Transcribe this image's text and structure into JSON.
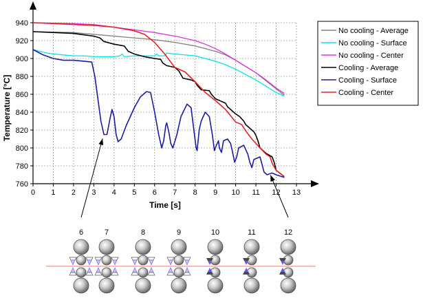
{
  "chart_data": {
    "type": "line",
    "title": "",
    "xlabel": "Time [s]",
    "ylabel": "Temperature [°C]",
    "xlim": [
      0,
      13
    ],
    "ylim": [
      760,
      940
    ],
    "xticks": [
      0,
      1,
      2,
      3,
      4,
      5,
      6,
      7,
      8,
      9,
      10,
      11,
      12,
      13
    ],
    "yticks": [
      760,
      780,
      800,
      820,
      840,
      860,
      880,
      900,
      920,
      940
    ],
    "grid": true,
    "legend_position": "top-right",
    "series": [
      {
        "name": "No cooling - Average",
        "color": "#808080",
        "points": [
          [
            0,
            930
          ],
          [
            2,
            929
          ],
          [
            3.5,
            926
          ],
          [
            5,
            923
          ],
          [
            6,
            921
          ],
          [
            7,
            918
          ],
          [
            8,
            914
          ],
          [
            9,
            908
          ],
          [
            9.5,
            904
          ],
          [
            10,
            898
          ],
          [
            10.5,
            891
          ],
          [
            11,
            884
          ],
          [
            11.5,
            875
          ],
          [
            12,
            866
          ],
          [
            12.4,
            859
          ]
        ]
      },
      {
        "name": "No cooling - Surface",
        "color": "#00e5e5",
        "points": [
          [
            0,
            910
          ],
          [
            0.5,
            907
          ],
          [
            1,
            905
          ],
          [
            1.5,
            904
          ],
          [
            2,
            903
          ],
          [
            2.5,
            903
          ],
          [
            3,
            902
          ],
          [
            3.5,
            902
          ],
          [
            4,
            902
          ],
          [
            4.3,
            903
          ],
          [
            4.4,
            905
          ],
          [
            4.5,
            902
          ],
          [
            5,
            903
          ],
          [
            5.5,
            903
          ],
          [
            6,
            903
          ],
          [
            6.1,
            905
          ],
          [
            6.2,
            903
          ],
          [
            6.5,
            903
          ],
          [
            6.6,
            906
          ],
          [
            7,
            905
          ],
          [
            8,
            903
          ],
          [
            8.5,
            900
          ],
          [
            9,
            897
          ],
          [
            9.5,
            893
          ],
          [
            10,
            888
          ],
          [
            10.5,
            882
          ],
          [
            11,
            876
          ],
          [
            11.5,
            869
          ],
          [
            12,
            862
          ],
          [
            12.4,
            858
          ]
        ]
      },
      {
        "name": "No cooling - Center",
        "color": "#e030e0",
        "points": [
          [
            0,
            940
          ],
          [
            2,
            939
          ],
          [
            3,
            938
          ],
          [
            4,
            935
          ],
          [
            5,
            932
          ],
          [
            6,
            929
          ],
          [
            7,
            925
          ],
          [
            8,
            920
          ],
          [
            8.5,
            916
          ],
          [
            9,
            911
          ],
          [
            9.5,
            905
          ],
          [
            10,
            898
          ],
          [
            10.5,
            891
          ],
          [
            11,
            884
          ],
          [
            11.5,
            876
          ],
          [
            12,
            867
          ],
          [
            12.4,
            861
          ]
        ]
      },
      {
        "name": "Cooling - Average",
        "color": "#000000",
        "points": [
          [
            0,
            930
          ],
          [
            2,
            928
          ],
          [
            3,
            925
          ],
          [
            3.3,
            923
          ],
          [
            3.5,
            919
          ],
          [
            4,
            916
          ],
          [
            4.5,
            914
          ],
          [
            4.7,
            908
          ],
          [
            5,
            905
          ],
          [
            5.5,
            902
          ],
          [
            6,
            900
          ],
          [
            6.3,
            899
          ],
          [
            6.4,
            895
          ],
          [
            6.6,
            892
          ],
          [
            7,
            890
          ],
          [
            7.2,
            886
          ],
          [
            7.4,
            878
          ],
          [
            7.8,
            876
          ],
          [
            8,
            874
          ],
          [
            8.1,
            870
          ],
          [
            8.3,
            865
          ],
          [
            8.7,
            864
          ],
          [
            8.8,
            860
          ],
          [
            9,
            855
          ],
          [
            9.3,
            852
          ],
          [
            9.5,
            850
          ],
          [
            9.6,
            846
          ],
          [
            9.8,
            842
          ],
          [
            10,
            838
          ],
          [
            10.2,
            835
          ],
          [
            10.4,
            830
          ],
          [
            10.5,
            826
          ],
          [
            10.7,
            822
          ],
          [
            10.9,
            818
          ],
          [
            11,
            814
          ],
          [
            11.1,
            808
          ],
          [
            11.2,
            800
          ],
          [
            11.5,
            794
          ],
          [
            11.8,
            790
          ],
          [
            11.9,
            784
          ],
          [
            12,
            775
          ],
          [
            12.4,
            768
          ]
        ]
      },
      {
        "name": "Cooling - Surface",
        "color": "#1a1aa8",
        "points": [
          [
            0,
            910
          ],
          [
            0.5,
            904
          ],
          [
            1,
            900
          ],
          [
            1.5,
            898
          ],
          [
            2,
            898
          ],
          [
            2.5,
            897
          ],
          [
            2.9,
            896
          ],
          [
            3.05,
            880
          ],
          [
            3.2,
            855
          ],
          [
            3.35,
            830
          ],
          [
            3.5,
            815
          ],
          [
            3.65,
            815
          ],
          [
            3.8,
            833
          ],
          [
            3.9,
            843
          ],
          [
            4,
            835
          ],
          [
            4.1,
            815
          ],
          [
            4.2,
            807
          ],
          [
            4.35,
            810
          ],
          [
            4.6,
            825
          ],
          [
            5,
            845
          ],
          [
            5.3,
            857
          ],
          [
            5.6,
            863
          ],
          [
            5.8,
            862
          ],
          [
            6,
            840
          ],
          [
            6.2,
            815
          ],
          [
            6.35,
            800
          ],
          [
            6.45,
            808
          ],
          [
            6.55,
            825
          ],
          [
            6.6,
            828
          ],
          [
            6.7,
            818
          ],
          [
            6.8,
            805
          ],
          [
            6.9,
            800
          ],
          [
            7.1,
            815
          ],
          [
            7.3,
            835
          ],
          [
            7.6,
            849
          ],
          [
            7.8,
            845
          ],
          [
            7.95,
            818
          ],
          [
            8.05,
            800
          ],
          [
            8.1,
            797
          ],
          [
            8.2,
            820
          ],
          [
            8.3,
            830
          ],
          [
            8.5,
            840
          ],
          [
            8.7,
            835
          ],
          [
            8.85,
            815
          ],
          [
            8.95,
            797
          ],
          [
            9.05,
            803
          ],
          [
            9.15,
            808
          ],
          [
            9.2,
            800
          ],
          [
            9.3,
            795
          ],
          [
            9.4,
            808
          ],
          [
            9.6,
            810
          ],
          [
            9.75,
            805
          ],
          [
            9.85,
            795
          ],
          [
            9.95,
            784
          ],
          [
            10.05,
            790
          ],
          [
            10.15,
            800
          ],
          [
            10.4,
            803
          ],
          [
            10.6,
            793
          ],
          [
            10.7,
            784
          ],
          [
            10.8,
            778
          ],
          [
            10.9,
            787
          ],
          [
            11.2,
            790
          ],
          [
            11.3,
            782
          ],
          [
            11.4,
            773
          ],
          [
            11.55,
            770
          ],
          [
            11.8,
            772
          ],
          [
            12,
            770
          ],
          [
            12.4,
            767
          ]
        ]
      },
      {
        "name": "Cooling - Center",
        "color": "#e82020",
        "points": [
          [
            0,
            940
          ],
          [
            2,
            938
          ],
          [
            3,
            937
          ],
          [
            4,
            935
          ],
          [
            5,
            931
          ],
          [
            5.5,
            927
          ],
          [
            6,
            918
          ],
          [
            6.5,
            905
          ],
          [
            7,
            890
          ],
          [
            7.5,
            885
          ],
          [
            8,
            874
          ],
          [
            8.5,
            862
          ],
          [
            9,
            853
          ],
          [
            9.5,
            843
          ],
          [
            10,
            829
          ],
          [
            10.3,
            826
          ],
          [
            10.5,
            819
          ],
          [
            10.8,
            810
          ],
          [
            11,
            805
          ],
          [
            11.2,
            800
          ],
          [
            11.5,
            793
          ],
          [
            11.7,
            790
          ],
          [
            11.8,
            783
          ],
          [
            12,
            775
          ],
          [
            12.4,
            768
          ]
        ]
      }
    ]
  },
  "callouts": {
    "steps": [
      "6",
      "7",
      "8",
      "9",
      "10",
      "11",
      "12"
    ],
    "arrow_targets": [
      [
        3.5,
        815
      ],
      [
        11.65,
        772
      ]
    ]
  },
  "colors": {
    "roller_fill": "#bdbdbd",
    "roller_stroke": "#4a4a4a",
    "pass_line": "#ff7070",
    "nozzle_dark": "#4a4a4a",
    "spray_blue": "#5b5bf0",
    "spray_light": "#c4c4fa"
  }
}
